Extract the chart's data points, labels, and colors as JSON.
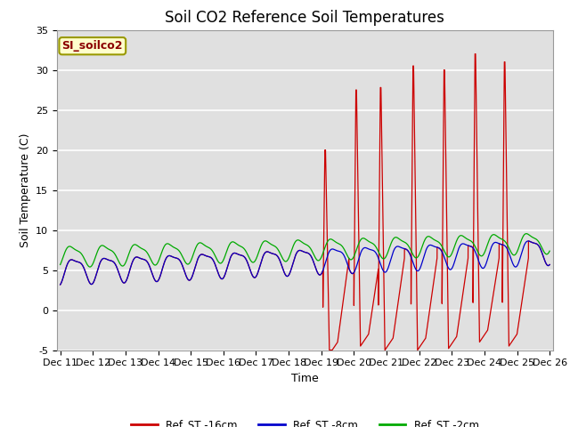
{
  "title": "Soil CO2 Reference Soil Temperatures",
  "xlabel": "Time",
  "ylabel": "Soil Temperature (C)",
  "ylim": [
    -5,
    35
  ],
  "xtick_labels": [
    "Dec 11",
    "Dec 12",
    "Dec 13",
    "Dec 14",
    "Dec 15",
    "Dec 16",
    "Dec 17",
    "Dec 18",
    "Dec 19",
    "Dec 20",
    "Dec 21",
    "Dec 22",
    "Dec 23",
    "Dec 24",
    "Dec 25",
    "Dec 26"
  ],
  "xtick_positions": [
    0,
    1,
    2,
    3,
    4,
    5,
    6,
    7,
    8,
    9,
    10,
    11,
    12,
    13,
    14,
    15
  ],
  "ytick_positions": [
    -5,
    0,
    5,
    10,
    15,
    20,
    25,
    30,
    35
  ],
  "legend_labels": [
    "Ref_ST -16cm",
    "Ref_ST -8cm",
    "Ref_ST -2cm"
  ],
  "legend_colors": [
    "#cc0000",
    "#0000cc",
    "#00aa00"
  ],
  "annotation_text": "SI_soilco2",
  "background_color": "#e0e0e0",
  "grid_color": "#ffffff",
  "title_fontsize": 12,
  "label_fontsize": 9,
  "tick_fontsize": 8,
  "spike_data": [
    [
      8.05,
      20.0,
      -5.5
    ],
    [
      9.0,
      27.5,
      -4.5
    ],
    [
      9.75,
      27.8,
      -5.0
    ],
    [
      10.75,
      30.5,
      -5.0
    ],
    [
      11.7,
      30.0,
      -4.8
    ],
    [
      12.65,
      32.0,
      -4.0
    ],
    [
      13.55,
      31.0,
      -4.5
    ]
  ]
}
